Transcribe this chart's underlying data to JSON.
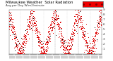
{
  "title": "Milwaukee Weather  Solar Radiation",
  "subtitle": "Avg per Day W/m2/minute",
  "bg_color": "#ffffff",
  "plot_bg": "#f8f8f8",
  "dot_color_main": "#dd0000",
  "dot_color_black": "#000000",
  "highlight_color": "#ee0000",
  "ylim": [
    0,
    9
  ],
  "ytick_labels": [
    "1",
    "2",
    "3",
    "4",
    "5",
    "6",
    "7",
    "8",
    "9"
  ],
  "ytick_values": [
    1,
    2,
    3,
    4,
    5,
    6,
    7,
    8,
    9
  ],
  "ylabel_fontsize": 3.0,
  "xlabel_fontsize": 2.5,
  "title_fontsize": 3.8,
  "num_points": 365
}
